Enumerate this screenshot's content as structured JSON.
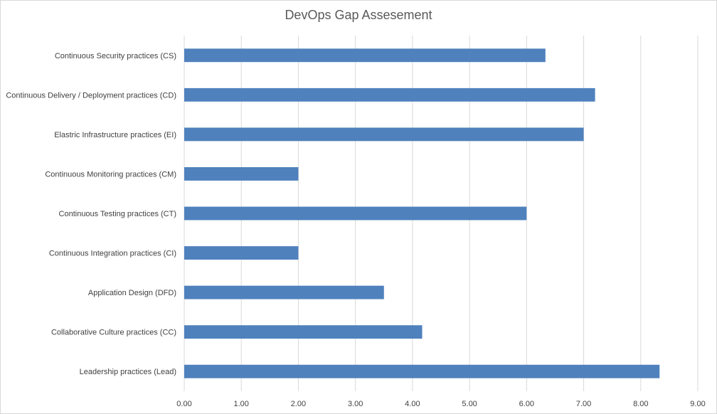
{
  "chart_data": {
    "type": "bar",
    "orientation": "horizontal",
    "title": "DevOps Gap Assesement",
    "xlabel": "",
    "ylabel": "",
    "categories": [
      "Continuous Security practices (CS)",
      "Continuous Delivery / Deployment practices (CD)",
      "Elastric Infrastructure practices (EI)",
      "Continuous Monitoring practices (CM)",
      "Continuous Testing practices (CT)",
      "Continuous Integration practices (CI)",
      "Application Design (DFD)",
      "Collaborative Culture practices (CC)",
      "Leadership practices (Lead)"
    ],
    "values": [
      6.33,
      7.2,
      7.0,
      2.0,
      6.0,
      2.0,
      3.5,
      4.17,
      8.33
    ],
    "xlim": [
      0,
      9
    ],
    "x_ticks": [
      "0.00",
      "1.00",
      "2.00",
      "3.00",
      "4.00",
      "5.00",
      "6.00",
      "7.00",
      "8.00",
      "9.00"
    ],
    "grid": "vertical",
    "legend": "none",
    "bar_color": "#4f81bd",
    "grid_color": "#d9d9d9",
    "text_color": "#404040"
  }
}
